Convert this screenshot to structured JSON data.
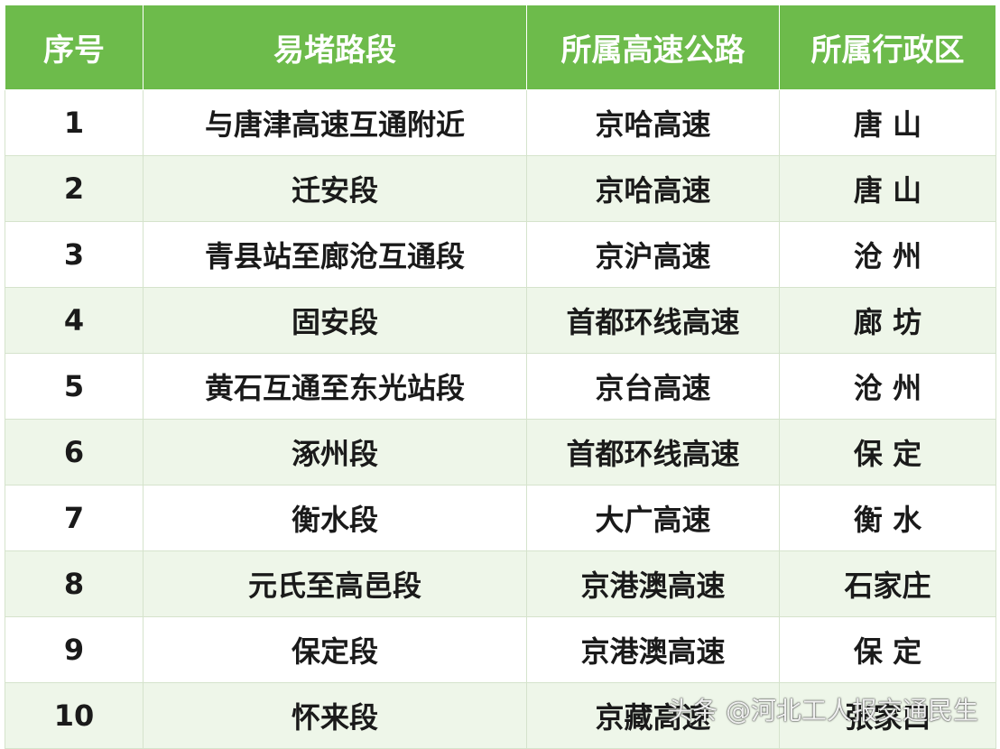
{
  "table": {
    "header": [
      "序号",
      "易堵路段",
      "所属高速公路",
      "所属行政区"
    ],
    "rows": [
      [
        "1",
        "与唐津高速互通附近",
        "京哈高速",
        "唐 山"
      ],
      [
        "2",
        "迁安段",
        "京哈高速",
        "唐 山"
      ],
      [
        "3",
        "青县站至廊沧互通段",
        "京沪高速",
        "沧 州"
      ],
      [
        "4",
        "固安段",
        "首都环线高速",
        "廊 坊"
      ],
      [
        "5",
        "黄石互通至东光站段",
        "京台高速",
        "沧 州"
      ],
      [
        "6",
        "涿州段",
        "首都环线高速",
        "保 定"
      ],
      [
        "7",
        "衡水段",
        "大广高速",
        "衡 水"
      ],
      [
        "8",
        "元氏至高邑段",
        "京港澳高速",
        "石家庄"
      ],
      [
        "9",
        "保定段",
        "京港澳高速",
        "保 定"
      ],
      [
        "10",
        "怀来段",
        "京藏高速",
        "张家口"
      ]
    ]
  },
  "watermark": "头条 @河北工人报交通民生"
}
